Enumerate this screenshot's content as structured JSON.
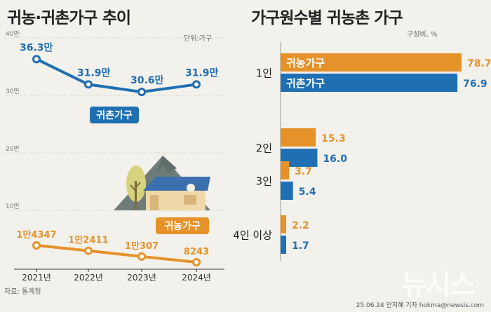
{
  "left": {
    "title": "귀농·귀촌가구 추이",
    "unit": "단위:가구",
    "y_ticks": [
      "40만",
      "30만",
      "20만",
      "10만"
    ],
    "years": [
      "2021년",
      "2022년",
      "2023년",
      "2024년"
    ],
    "source": "자료: 통계청",
    "illustration": "house-mountain-tree"
  },
  "right": {
    "title": "가구원수별 귀농촌 가구",
    "unit": "구성비, %"
  },
  "chart_data": [
    {
      "type": "line",
      "title": "귀농·귀촌가구 추이",
      "x": [
        "2021년",
        "2022년",
        "2023년",
        "2024년"
      ],
      "series": [
        {
          "name": "귀촌가구",
          "values": [
            363000,
            319000,
            306000,
            319000
          ],
          "labels": [
            "36.3만",
            "31.9만",
            "30.6만",
            "31.9만"
          ],
          "color": "#1f6fb2"
        },
        {
          "name": "귀농가구",
          "values": [
            14347,
            12411,
            10307,
            8243
          ],
          "labels": [
            "1만4347",
            "1만2411",
            "1만307",
            "8243"
          ],
          "color": "#e5922a"
        }
      ],
      "ylabel": "가구",
      "ylim": [
        0,
        400000
      ]
    },
    {
      "type": "bar",
      "title": "가구원수별 귀농촌 가구",
      "categories": [
        "1인",
        "2인",
        "3인",
        "4인 이상"
      ],
      "series": [
        {
          "name": "귀농가구",
          "values": [
            78.7,
            15.3,
            3.7,
            2.2
          ],
          "labels": [
            "78.7",
            "15.3",
            "3.7",
            "2.2"
          ],
          "color": "#e5922a"
        },
        {
          "name": "귀촌가구",
          "values": [
            76.9,
            16.0,
            5.4,
            1.7
          ],
          "labels": [
            "76.9",
            "16.0",
            "5.4",
            "1.7"
          ],
          "color": "#1f6fb2"
        }
      ],
      "ylabel": "구성비, %"
    }
  ],
  "footer": {
    "watermark": "뉴시스",
    "credit": "25.06.24 안지혜 기자 hokma@newsis.com"
  },
  "colors": {
    "orange": "#e5922a",
    "blue": "#1f6fb2"
  }
}
